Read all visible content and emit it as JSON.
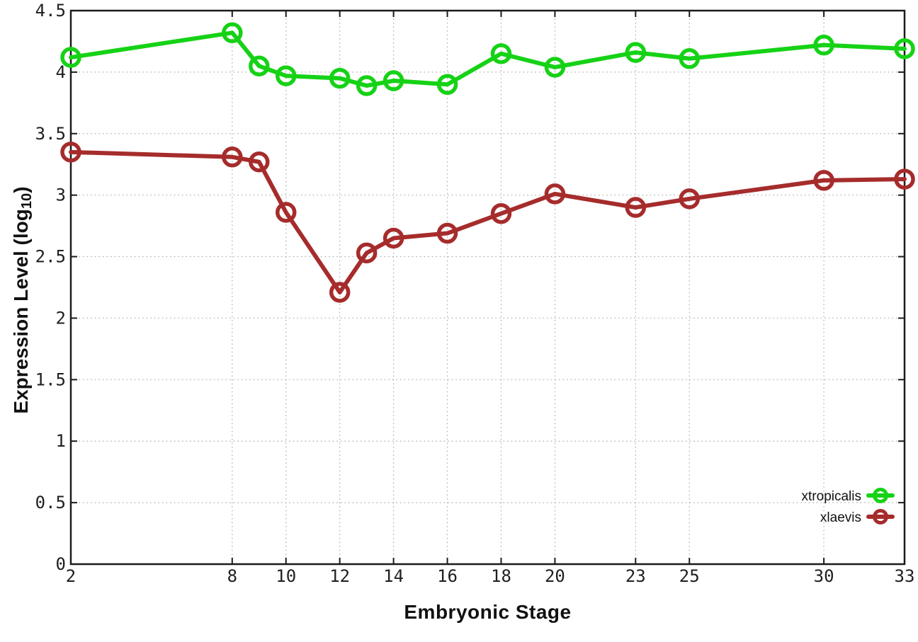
{
  "chart_data": {
    "type": "line",
    "title": "",
    "xlabel": "Embryonic Stage",
    "ylabel": "Expression Level (log10)",
    "ylabel_prefix": "Expression Level (log",
    "ylabel_sub": "10",
    "ylabel_suffix": ")",
    "xlim": [
      2,
      33
    ],
    "ylim": [
      0,
      4.5
    ],
    "x_tick_labels": [
      "2",
      "8",
      "10",
      "12",
      "14",
      "16",
      "18",
      "20",
      "23",
      "25",
      "30",
      "33"
    ],
    "x_ticks": [
      2,
      8,
      10,
      12,
      14,
      16,
      18,
      20,
      23,
      25,
      30,
      33
    ],
    "y_tick_labels": [
      "0",
      "0.5",
      "1",
      "1.5",
      "2",
      "2.5",
      "3",
      "3.5",
      "4",
      "4.5"
    ],
    "y_ticks": [
      0,
      0.5,
      1,
      1.5,
      2,
      2.5,
      3,
      3.5,
      4,
      4.5
    ],
    "grid": true,
    "legend_position": "bottom-right",
    "x": [
      2,
      8,
      9,
      10,
      12,
      13,
      14,
      16,
      18,
      20,
      23,
      25,
      30,
      33
    ],
    "series": [
      {
        "name": "xtropicalis",
        "color": "#16d216",
        "values": [
          4.12,
          4.32,
          4.05,
          3.97,
          3.95,
          3.89,
          3.93,
          3.9,
          4.15,
          4.04,
          4.16,
          4.11,
          4.22,
          4.19
        ]
      },
      {
        "name": "xlaevis",
        "color": "#a62c2c",
        "values": [
          3.35,
          3.31,
          3.27,
          2.86,
          2.21,
          2.53,
          2.65,
          2.69,
          2.85,
          3.01,
          2.9,
          2.97,
          3.12,
          3.13
        ]
      }
    ],
    "colors": {
      "axis": "#1b1b1b",
      "grid": "#b5b5b5",
      "tick_text": "#1f1f1f",
      "legend_text": "#111111"
    }
  }
}
